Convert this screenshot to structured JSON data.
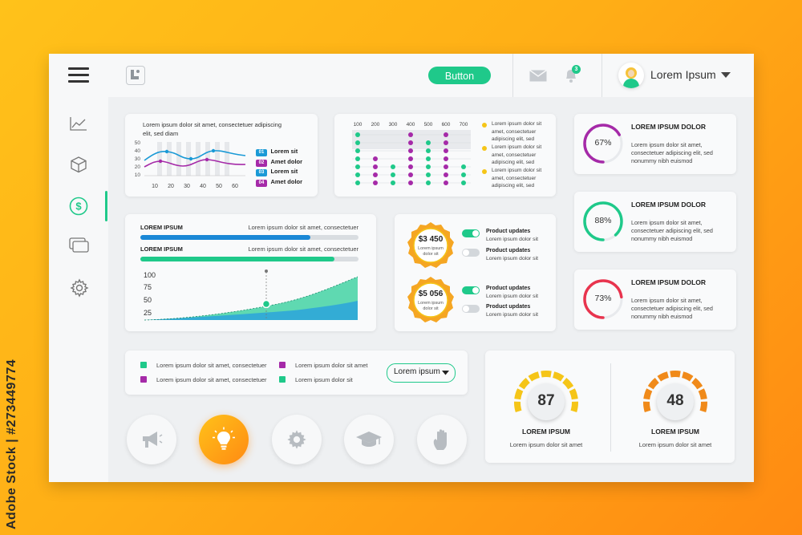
{
  "watermark": "Adobe Stock | #273449774",
  "header": {
    "button_label": "Button",
    "notification_count": "3",
    "user_name": "Lorem Ipsum"
  },
  "sidebar": {
    "items": [
      "chart-line-icon",
      "cube-icon",
      "dollar-icon",
      "cards-icon",
      "gear-icon"
    ],
    "active_index": 2
  },
  "line_chart_card": {
    "text": "Lorem ipsum dolor sit amet, consectetuer adipiscing elit, sed diam",
    "y_ticks": [
      "50",
      "40",
      "30",
      "20",
      "10"
    ],
    "x_ticks": [
      "10",
      "20",
      "30",
      "40",
      "50",
      "60"
    ],
    "legend": [
      {
        "num": "01",
        "label": "Lorem sit",
        "color": "#1b9ad6"
      },
      {
        "num": "02",
        "label": "Amet dolor",
        "color": "#a52aa8"
      },
      {
        "num": "03",
        "label": "Lorem sit",
        "color": "#1b9ad6"
      },
      {
        "num": "04",
        "label": "Amet dolor",
        "color": "#a52aa8"
      }
    ]
  },
  "dot_chart_card": {
    "x_ticks": [
      "100",
      "200",
      "300",
      "400",
      "500",
      "600",
      "700"
    ],
    "legend": [
      "Lorem ipsum dolor sit amet, consectetuer adipiscing elit, sed",
      "Lorem ipsum dolor sit amet, consectetuer adipiscing elit, sed",
      "Lorem ipsum dolor sit amet, consectetuer adipiscing elit, sed"
    ]
  },
  "progress_card": {
    "bars": [
      {
        "title": "LOREM IPSUM",
        "desc": "Lorem ipsum dolor sit amet, consectetuer",
        "value": 0.78,
        "color": "#1b88d6"
      },
      {
        "title": "LOREM IPSUM",
        "desc": "Lorem ipsum dolor sit amet, consectetuer",
        "value": 0.89,
        "color": "#1fc98a"
      }
    ],
    "y_ticks": [
      "100",
      "75",
      "50",
      "25"
    ]
  },
  "price_card": {
    "badges": [
      {
        "amount": "$3 450",
        "sub": "Lorem ipsum dolor sit"
      },
      {
        "amount": "$5 056",
        "sub": "Lorem ipsum dolor sit"
      }
    ],
    "toggles": [
      {
        "title": "Product updates",
        "desc": "Lorem ipsum dolor sit",
        "on": true
      },
      {
        "title": "Product updates",
        "desc": "Lorem ipsum dolor sit",
        "on": false
      },
      {
        "title": "Product updates",
        "desc": "Lorem ipsum dolor sit",
        "on": true
      },
      {
        "title": "Product updates",
        "desc": "Lorem ipsum dolor sit",
        "on": false
      }
    ]
  },
  "ring_cards": [
    {
      "percent": "67%",
      "value": 0.67,
      "color": "#a52aa8",
      "title": "LOREM IPSUM DOLOR",
      "desc": "Lorem ipsum dolor sit amet, consectetuer adipiscing elit, sed nonummy nibh euismod"
    },
    {
      "percent": "88%",
      "value": 0.88,
      "color": "#1fc98a",
      "title": "LOREM IPSUM DOLOR",
      "desc": "Lorem ipsum dolor sit amet, consectetuer adipiscing elit, sed nonummy nibh euismod"
    },
    {
      "percent": "73%",
      "value": 0.73,
      "color": "#e8344e",
      "title": "LOREM IPSUM DOLOR",
      "desc": "Lorem ipsum dolor sit amet, consectetuer adipiscing elit, sed nonummy nibh euismod"
    }
  ],
  "legend_card": {
    "items": [
      {
        "text": "Lorem ipsum dolor sit amet, consectetuer",
        "color": "#1fc98a"
      },
      {
        "text": "Lorem ipsum dolor sit amet",
        "color": "#a52aa8"
      },
      {
        "text": "Lorem ipsum dolor sit amet, consectetuer",
        "color": "#a52aa8"
      },
      {
        "text": "Lorem ipsum dolor sit",
        "color": "#1fc98a"
      }
    ],
    "dropdown_value": "Lorem ipsum"
  },
  "action_buttons": [
    "megaphone-icon",
    "lightbulb-icon",
    "gear-icon",
    "graduation-cap-icon",
    "hand-icon"
  ],
  "gauge_card": {
    "gauges": [
      {
        "value": "87",
        "title": "LOREM IPSUM",
        "desc": "Lorem ipsum dolor sit amet",
        "color": "#f5c518"
      },
      {
        "value": "48",
        "title": "LOREM IPSUM",
        "desc": "Lorem ipsum dolor sit amet",
        "color": "#f08a1a"
      }
    ]
  },
  "colors": {
    "green": "#1fc98a",
    "blue": "#1b88d6",
    "purple": "#a52aa8",
    "red": "#e8344e",
    "yellow": "#f5c518",
    "orange": "#f08a1a"
  }
}
